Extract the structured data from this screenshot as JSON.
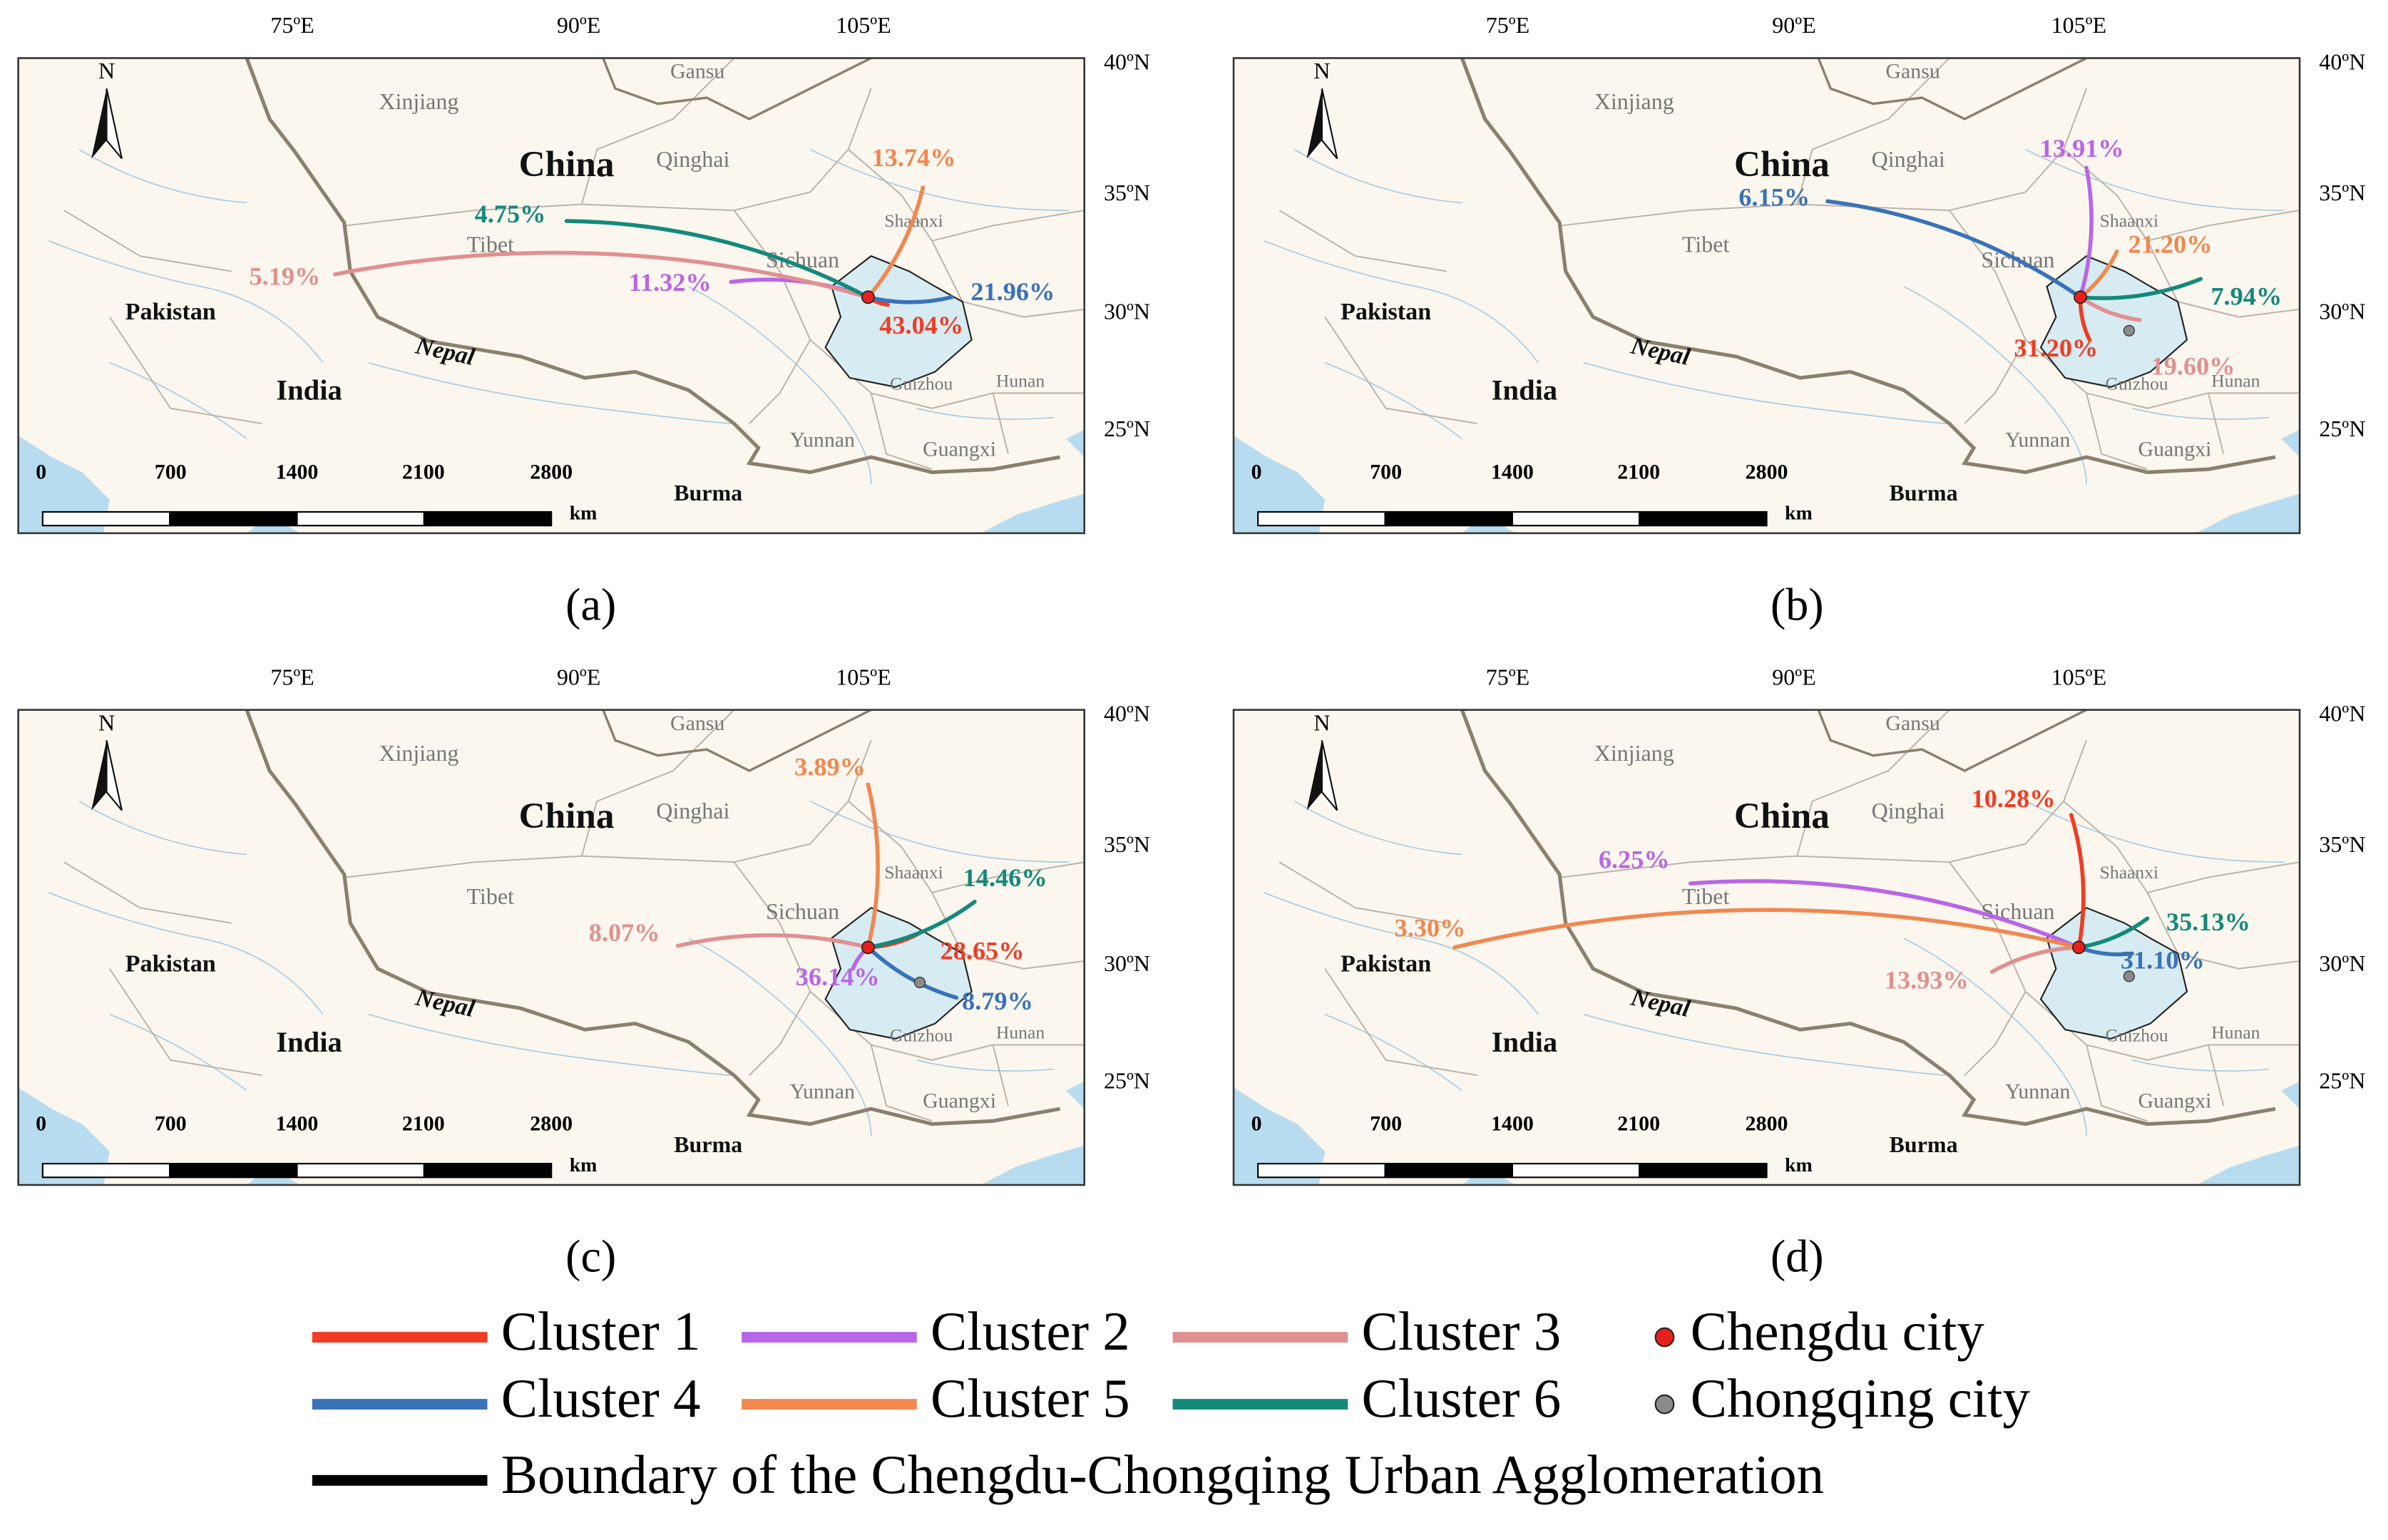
{
  "base_map": {
    "north": "N",
    "lon_ticks": [
      "75ºE",
      "90ºE",
      "105ºE"
    ],
    "lat_ticks": [
      "40ºN",
      "35ºN",
      "30ºN",
      "25ºN"
    ],
    "places": [
      "Gansu",
      "Xinjiang",
      "China",
      "Qinghai",
      "Tibet",
      "Shaanxi",
      "Sichuan",
      "Pakistan",
      "India",
      "Nepal",
      "Guizhou",
      "Hunan",
      "Yunnan",
      "Guangxi",
      "Burma"
    ],
    "scale": [
      "0",
      "700",
      "1400",
      "2100",
      "2800"
    ],
    "scale_unit": "km"
  },
  "panels": [
    {
      "caption": "(a)",
      "flows": [
        "43.04%",
        "11.32%",
        "5.19%",
        "21.96%",
        "13.74%",
        "4.75%"
      ]
    },
    {
      "caption": "(b)",
      "flows": [
        "31.20%",
        "13.91%",
        "19.60%",
        "6.15%",
        "21.20%",
        "7.94%"
      ]
    },
    {
      "caption": "(c)",
      "flows": [
        "28.65%",
        "36.14%",
        "8.07%",
        "8.79%",
        "3.89%",
        "14.46%"
      ]
    },
    {
      "caption": "(d)",
      "flows": [
        "10.28%",
        "6.25%",
        "13.93%",
        "31.10%",
        "3.30%",
        "35.13%"
      ]
    }
  ],
  "legend": {
    "clusters": [
      {
        "name": "Cluster 1",
        "color": "#f03c24"
      },
      {
        "name": "Cluster 2",
        "color": "#b865e8"
      },
      {
        "name": "Cluster 3",
        "color": "#e09090"
      },
      {
        "name": "Cluster 4",
        "color": "#3a72b8"
      },
      {
        "name": "Cluster 5",
        "color": "#f08850"
      },
      {
        "name": "Cluster 6",
        "color": "#138a7a"
      }
    ],
    "points": [
      {
        "name": "Chengdu city",
        "color": "#e8201c"
      },
      {
        "name": "Chongqing city",
        "color": "#8a8a8a"
      }
    ],
    "boundary": {
      "name": "Boundary of the Chengdu-Chongqing Urban Agglomeration",
      "color": "#000000"
    }
  }
}
